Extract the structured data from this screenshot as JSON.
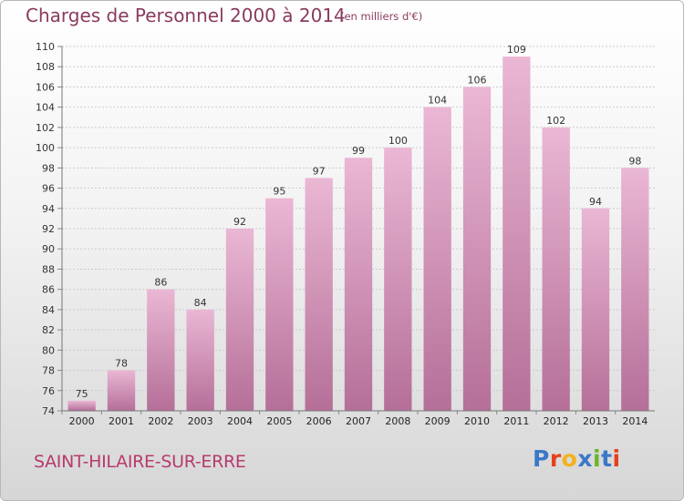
{
  "header": {
    "title": "Charges de Personnel 2000 à 2014",
    "subtitle": "(en milliers d'€)"
  },
  "footer": {
    "commune": "SAINT-HILAIRE-SUR-ERRE",
    "logo_text": "Proxiti",
    "logo_colors": [
      "#3a78c8",
      "#e8401a",
      "#f2b21c",
      "#3a78c8",
      "#6cb42c",
      "#3a78c8",
      "#e8401a"
    ]
  },
  "colors": {
    "bar_light": "#eab7d4",
    "bar_dark": "#b56f98",
    "grid": "#cccccc",
    "title": "#8a3a5e",
    "commune": "#b83a6e"
  },
  "chart_data": {
    "type": "bar",
    "title": "Charges de Personnel 2000 à 2014",
    "subtitle": "(en milliers d'€)",
    "categories": [
      "2000",
      "2001",
      "2002",
      "2003",
      "2004",
      "2005",
      "2006",
      "2007",
      "2008",
      "2009",
      "2010",
      "2011",
      "2012",
      "2013",
      "2014"
    ],
    "values": [
      75,
      78,
      86,
      84,
      92,
      95,
      97,
      99,
      100,
      104,
      106,
      109,
      102,
      94,
      98
    ],
    "ylim": [
      74,
      110
    ],
    "yticks": [
      74,
      76,
      78,
      80,
      82,
      84,
      86,
      88,
      90,
      92,
      94,
      96,
      98,
      100,
      102,
      104,
      106,
      108,
      110
    ],
    "grid": true,
    "data_labels": true
  }
}
